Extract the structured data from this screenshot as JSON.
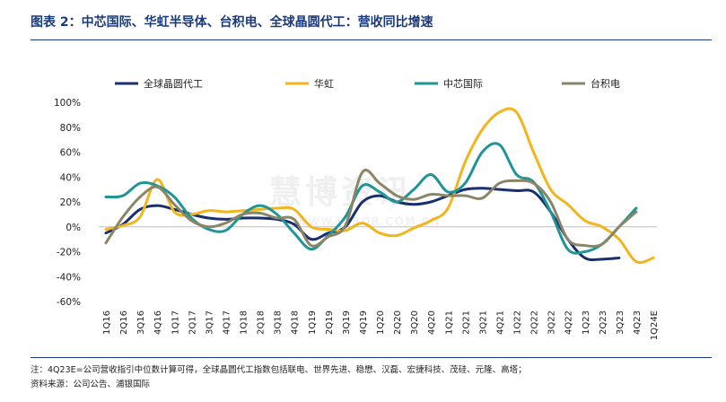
{
  "header": {
    "title": "图表 2：中芯国际、华虹半导体、台积电、全球晶圆代工：营收同比增速"
  },
  "footer": {
    "note": "注：4Q23E=公司营收指引中位数计算可得，全球晶圆代工指数包括联电、世界先进、稳懋、汉磊、宏捷科技、茂硅、元隆、高塔；",
    "source": "资料来源：公司公告、浦银国际"
  },
  "watermark": {
    "main": "慧博资讯",
    "sub": "WWW.HIBOR.COM.CN"
  },
  "chart_data": {
    "type": "line",
    "categories": [
      "1Q16",
      "2Q16",
      "3Q16",
      "4Q16",
      "1Q17",
      "2Q17",
      "3Q17",
      "4Q17",
      "1Q18",
      "2Q18",
      "3Q18",
      "4Q18",
      "1Q19",
      "2Q19",
      "3Q19",
      "4Q19",
      "1Q20",
      "2Q20",
      "3Q20",
      "4Q20",
      "1Q21",
      "2Q21",
      "3Q21",
      "4Q21",
      "1Q22",
      "2Q22",
      "3Q22",
      "4Q22",
      "1Q23",
      "2Q23",
      "3Q23",
      "4Q23",
      "1Q24E"
    ],
    "ylim": [
      -60,
      100
    ],
    "yticks": [
      -60,
      -40,
      -20,
      0,
      20,
      40,
      60,
      80,
      100
    ],
    "ytick_labels": [
      "-60%",
      "-40%",
      "-20%",
      "0%",
      "20%",
      "40%",
      "60%",
      "80%",
      "100%"
    ],
    "legend_position": "top",
    "grid": false,
    "series": [
      {
        "name": "全球晶圆代工",
        "color": "#1a2f6e",
        "values": [
          -5,
          2,
          14,
          17,
          14,
          10,
          7,
          6,
          7,
          7,
          6,
          2,
          -10,
          -5,
          0,
          20,
          25,
          20,
          18,
          20,
          25,
          30,
          31,
          30,
          29,
          28,
          12,
          -10,
          -25,
          -26,
          -25,
          null,
          null
        ]
      },
      {
        "name": "华虹",
        "color": "#f2b51c",
        "values": [
          -2,
          1,
          8,
          38,
          12,
          10,
          13,
          12,
          13,
          14,
          15,
          14,
          0,
          -2,
          -3,
          3,
          -5,
          -7,
          -1,
          5,
          15,
          52,
          78,
          92,
          92,
          60,
          30,
          18,
          5,
          0,
          -10,
          -28,
          -25
        ]
      },
      {
        "name": "中芯国际",
        "color": "#1f9595",
        "values": [
          24,
          25,
          35,
          33,
          24,
          7,
          -2,
          -3,
          10,
          17,
          10,
          -5,
          -18,
          -7,
          8,
          33,
          28,
          20,
          30,
          42,
          28,
          35,
          60,
          66,
          42,
          36,
          12,
          -18,
          -20,
          -14,
          0,
          15,
          null
        ]
      },
      {
        "name": "台积电",
        "color": "#8b8568",
        "values": [
          -13,
          8,
          24,
          32,
          18,
          5,
          0,
          3,
          10,
          11,
          7,
          6,
          -15,
          -8,
          1,
          44,
          35,
          25,
          22,
          26,
          25,
          25,
          23,
          35,
          37,
          35,
          20,
          -10,
          -15,
          -14,
          0,
          12,
          null
        ]
      }
    ]
  }
}
